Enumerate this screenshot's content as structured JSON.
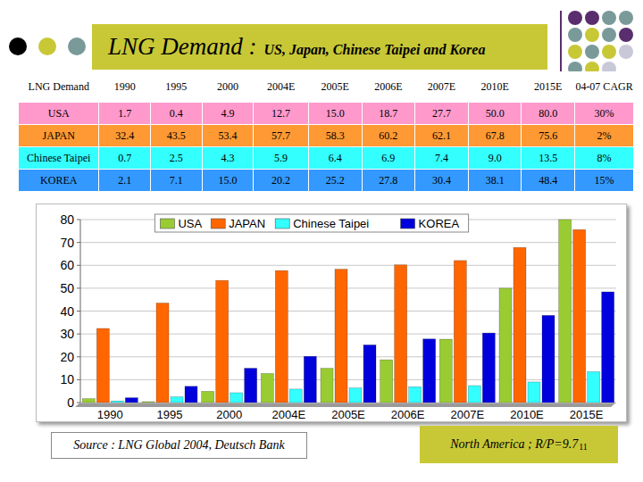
{
  "header": {
    "title": "LNG Demand :",
    "subtitle": "US, Japan, Chinese Taipei and Korea"
  },
  "table": {
    "columns": [
      "LNG Demand",
      "1990",
      "1995",
      "2000",
      "2004E",
      "2005E",
      "2006E",
      "2007E",
      "2010E",
      "2015E",
      "04-07 CAGR"
    ],
    "rows": [
      [
        "USA",
        "1.7",
        "0.4",
        "4.9",
        "12.7",
        "15.0",
        "18.7",
        "27.7",
        "50.0",
        "80.0",
        "30%"
      ],
      [
        "JAPAN",
        "32.4",
        "43.5",
        "53.4",
        "57.7",
        "58.3",
        "60.2",
        "62.1",
        "67.8",
        "75.6",
        "2%"
      ],
      [
        "Chinese Taipei",
        "0.7",
        "2.5",
        "4.3",
        "5.9",
        "6.4",
        "6.9",
        "7.4",
        "9.0",
        "13.5",
        "8%"
      ],
      [
        "KOREA",
        "2.1",
        "7.1",
        "15.0",
        "20.2",
        "25.2",
        "27.8",
        "30.4",
        "38.1",
        "48.4",
        "15%"
      ]
    ]
  },
  "chart_data": {
    "type": "bar",
    "categories": [
      "1990",
      "1995",
      "2000",
      "2004E",
      "2005E",
      "2006E",
      "2007E",
      "2010E",
      "2015E"
    ],
    "series": [
      {
        "name": "USA",
        "color": "#99cc33",
        "values": [
          1.7,
          0.4,
          4.9,
          12.7,
          15.0,
          18.7,
          27.7,
          50.0,
          80.0
        ]
      },
      {
        "name": "JAPAN",
        "color": "#ff6600",
        "values": [
          32.4,
          43.5,
          53.4,
          57.7,
          58.3,
          60.2,
          62.1,
          67.8,
          75.6
        ]
      },
      {
        "name": "Chinese Taipei",
        "color": "#33ffff",
        "values": [
          0.7,
          2.5,
          4.3,
          5.9,
          6.4,
          6.9,
          7.4,
          9.0,
          13.5
        ]
      },
      {
        "name": "KOREA",
        "color": "#0000dd",
        "values": [
          2.1,
          7.1,
          15.0,
          20.2,
          25.2,
          27.8,
          30.4,
          38.1,
          48.4
        ]
      }
    ],
    "ylim": [
      0,
      80
    ],
    "yticks": [
      0,
      10,
      20,
      30,
      40,
      50,
      60,
      70,
      80
    ],
    "grid": true,
    "legend": "top"
  },
  "source": "Source : LNG Global 2004, Deutsch Bank",
  "footer": {
    "note": "North America ; R/P=9.7",
    "page_number": "11"
  }
}
